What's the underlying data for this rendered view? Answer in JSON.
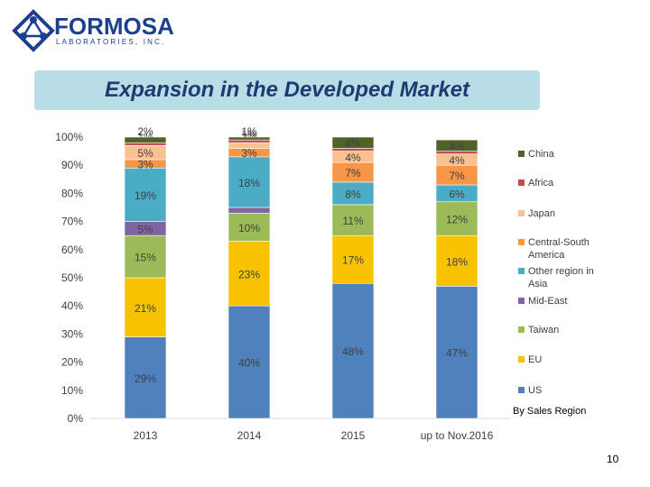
{
  "logo": {
    "name": "FORMOSA",
    "sub": "LABORATORIES, INC."
  },
  "slide": {
    "title": "Expansion in the Developed Market",
    "note": "By Sales Region",
    "page": "10"
  },
  "colors": {
    "US": "#4f81bd",
    "EU": "#f7c300",
    "Taiwan": "#9bbb59",
    "Mid-East": "#8064a2",
    "Other region in Asia": "#4bacc6",
    "Central-South America": "#f79646",
    "Japan": "#fac090",
    "Africa": "#c0504d",
    "China": "#4f6228"
  },
  "chart_data": {
    "type": "bar",
    "stacked": true,
    "categories": [
      "2013",
      "2014",
      "2015",
      "up to Nov.2016"
    ],
    "ylim": [
      0,
      100
    ],
    "y_ticks": [
      "0%",
      "10%",
      "20%",
      "30%",
      "40%",
      "50%",
      "60%",
      "70%",
      "80%",
      "90%",
      "100%"
    ],
    "legend_position": "right",
    "series": [
      {
        "name": "US",
        "values": [
          29,
          40,
          48,
          47
        ],
        "labels": [
          "29%",
          "40%",
          "48%",
          "47%"
        ]
      },
      {
        "name": "EU",
        "values": [
          21,
          23,
          17,
          18
        ],
        "labels": [
          "21%",
          "23%",
          "17%",
          "18%"
        ]
      },
      {
        "name": "Taiwan",
        "values": [
          15,
          10,
          11,
          12
        ],
        "labels": [
          "15%",
          "10%",
          "11%",
          "12%"
        ]
      },
      {
        "name": "Mid-East",
        "values": [
          5,
          2,
          0,
          0
        ],
        "labels": [
          "5%",
          "2%",
          "",
          ""
        ]
      },
      {
        "name": "Other region in Asia",
        "values": [
          19,
          18,
          8,
          6
        ],
        "labels": [
          "19%",
          "18%",
          "8%",
          "6%"
        ]
      },
      {
        "name": "Central-South America",
        "values": [
          3,
          3,
          7,
          7
        ],
        "labels": [
          "3%",
          "3%",
          "7%",
          "7%"
        ]
      },
      {
        "name": "Japan",
        "values": [
          5,
          2,
          4,
          4
        ],
        "labels": [
          "5%",
          "2%",
          "4%",
          "4%"
        ]
      },
      {
        "name": "Africa",
        "values": [
          1,
          1,
          1,
          1
        ],
        "labels": [
          "1%",
          "1%",
          "1%",
          "1%"
        ]
      },
      {
        "name": "China",
        "values": [
          2,
          1,
          4,
          4
        ],
        "labels": [
          "2%",
          "1%",
          "4%",
          "4%"
        ]
      }
    ],
    "legend_order": [
      "China",
      "Africa",
      "Japan",
      "Central-South America",
      "Other region in Asia",
      "Mid-East",
      "Taiwan",
      "EU",
      "US"
    ],
    "legend_labels": {
      "China": [
        "China"
      ],
      "Africa": [
        "Africa"
      ],
      "Japan": [
        "Japan"
      ],
      "Central-South America": [
        "Central-South",
        "America"
      ],
      "Other region in Asia": [
        "Other region in",
        "Asia"
      ],
      "Mid-East": [
        "Mid-East"
      ],
      "Taiwan": [
        "Taiwan"
      ],
      "EU": [
        "EU"
      ],
      "US": [
        "US"
      ]
    }
  }
}
